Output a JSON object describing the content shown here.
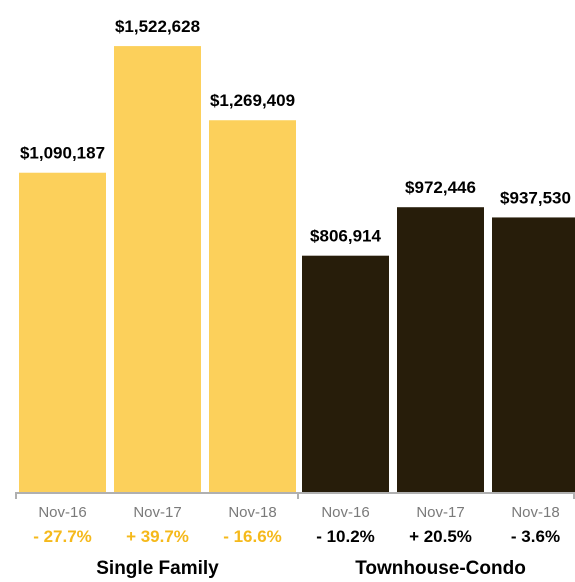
{
  "chart_data": {
    "type": "bar",
    "groups": [
      {
        "name": "Single Family",
        "color": "#fcd05b",
        "change_color": "#f5b91b",
        "categories": [
          "Nov-16",
          "Nov-17",
          "Nov-18"
        ],
        "values": [
          1090187,
          1522628,
          1269409
        ],
        "value_labels": [
          "$1,090,187",
          "$1,522,628",
          "$1,269,409"
        ],
        "changes": [
          "- 27.7%",
          "+ 39.7%",
          "- 16.6%"
        ]
      },
      {
        "name": "Townhouse-Condo",
        "color": "#271d0a",
        "change_color": "#000000",
        "categories": [
          "Nov-16",
          "Nov-17",
          "Nov-18"
        ],
        "values": [
          806914,
          972446,
          937530
        ],
        "value_labels": [
          "$806,914",
          "$972,446",
          "$937,530"
        ],
        "changes": [
          "- 10.2%",
          "+ 20.5%",
          "- 3.6%"
        ]
      }
    ],
    "ylim": [
      0,
      1680000
    ],
    "axis_color": "#b0b0b0"
  }
}
